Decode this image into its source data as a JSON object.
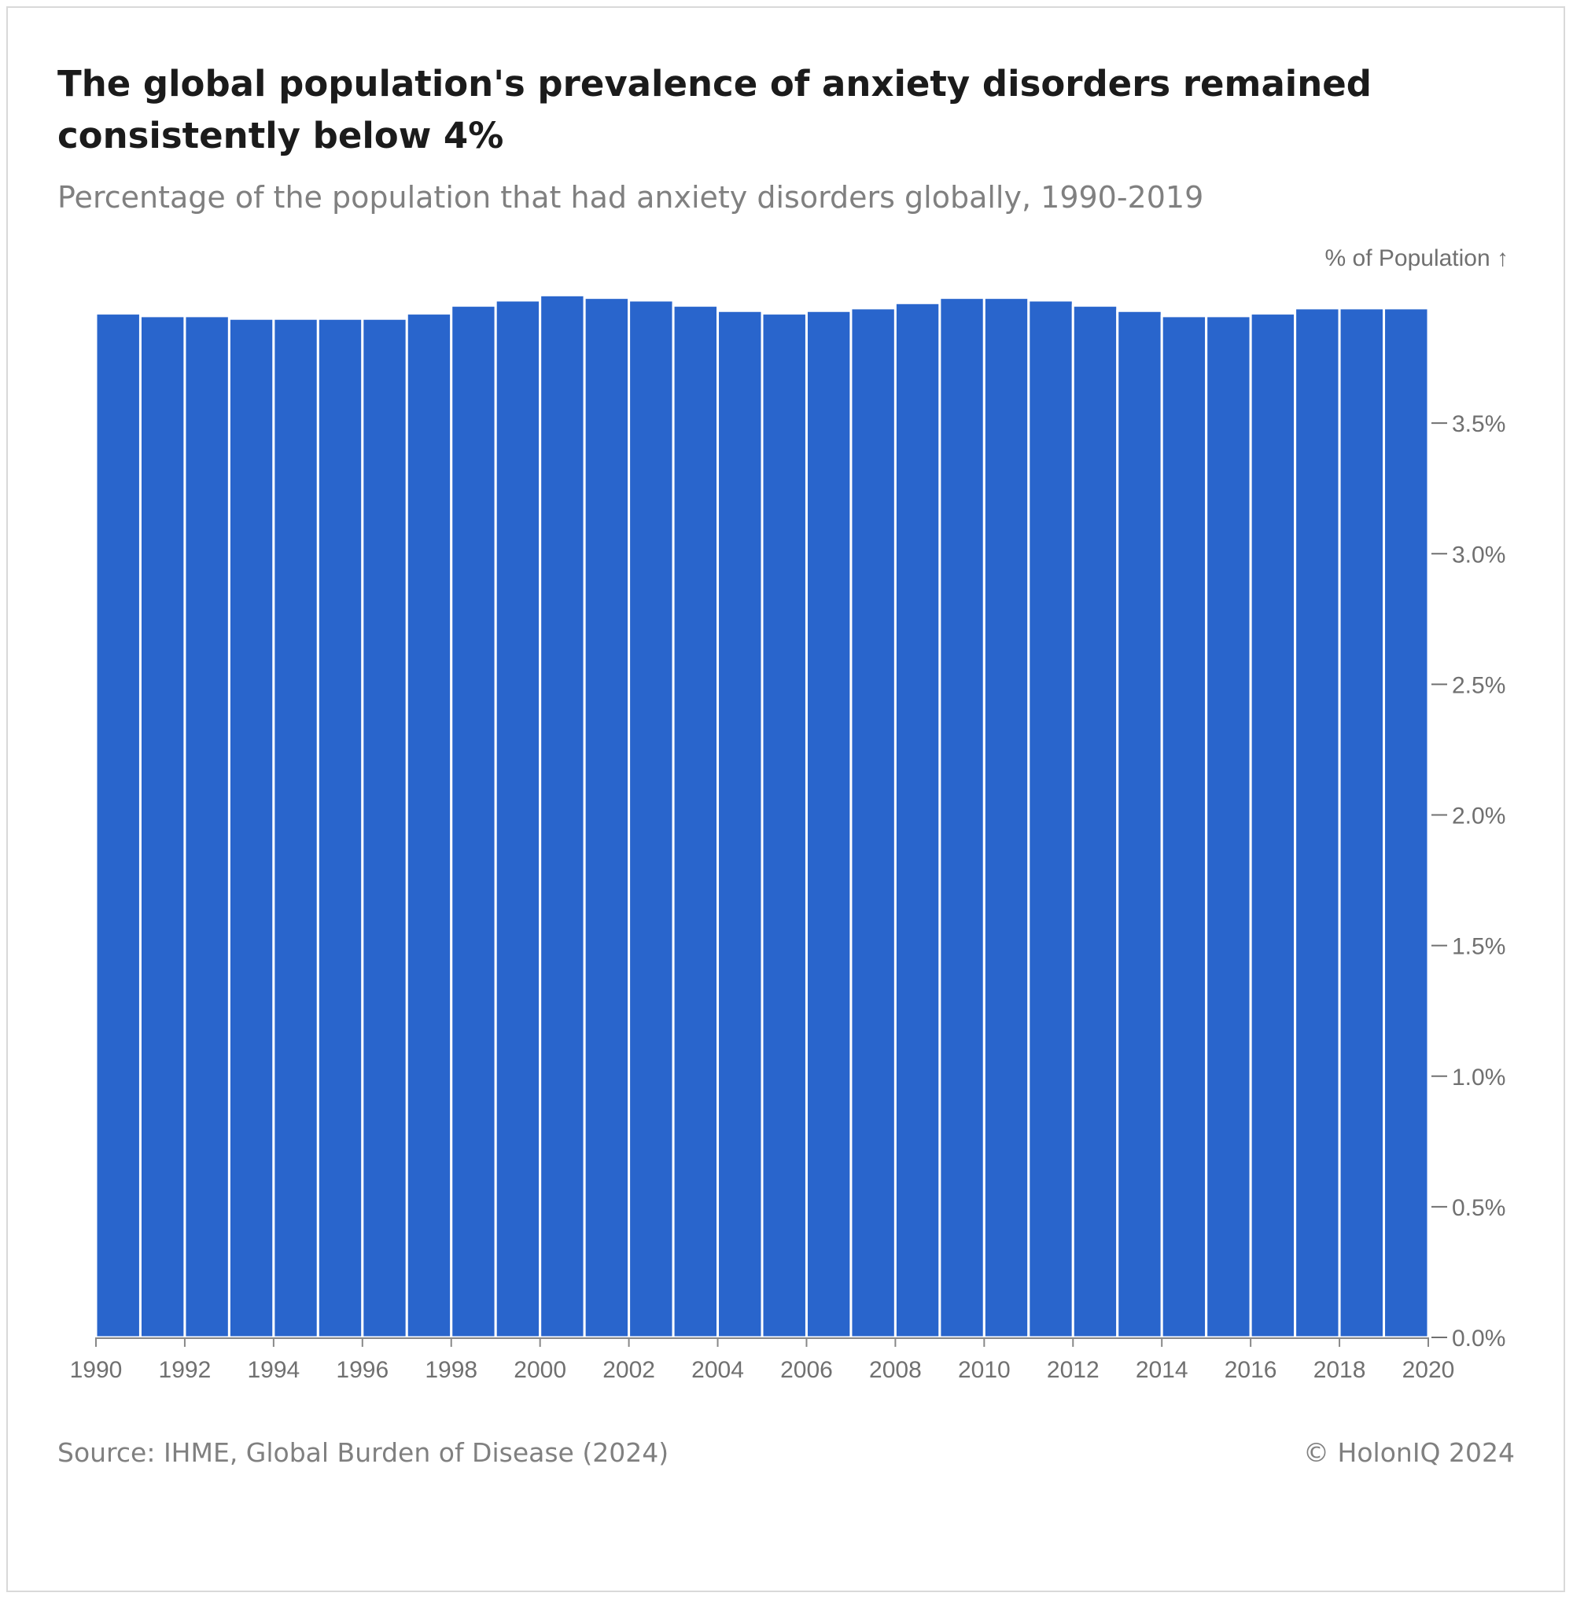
{
  "header": {
    "title": "The global population's prevalence of anxiety disorders remained consistently below 4%",
    "subtitle": "Percentage of the population that had anxiety disorders globally, 1990-2019"
  },
  "footer": {
    "source": "Source: IHME, Global Burden of Disease (2024)",
    "credit": "© HolonIQ 2024"
  },
  "chart_data": {
    "type": "bar",
    "title": "The global population's prevalence of anxiety disorders remained consistently below 4%",
    "subtitle": "Percentage of the population that had anxiety disorders globally, 1990-2019",
    "ylabel": "% of Population ↑",
    "xlabel": "",
    "bar_color": "#2965cc",
    "x": [
      1990,
      1991,
      1992,
      1993,
      1994,
      1995,
      1996,
      1997,
      1998,
      1999,
      2000,
      2001,
      2002,
      2003,
      2004,
      2005,
      2006,
      2007,
      2008,
      2009,
      2010,
      2011,
      2012,
      2013,
      2014,
      2015,
      2016,
      2017,
      2018,
      2019
    ],
    "values": [
      3.92,
      3.91,
      3.91,
      3.9,
      3.9,
      3.9,
      3.9,
      3.92,
      3.95,
      3.97,
      3.99,
      3.98,
      3.97,
      3.95,
      3.93,
      3.92,
      3.93,
      3.94,
      3.96,
      3.98,
      3.98,
      3.97,
      3.95,
      3.93,
      3.91,
      3.91,
      3.92,
      3.94,
      3.94,
      3.94
    ],
    "xlim": [
      1990,
      2020
    ],
    "ylim": [
      0,
      4.0
    ],
    "x_ticks": [
      1990,
      1992,
      1994,
      1996,
      1998,
      2000,
      2002,
      2004,
      2006,
      2008,
      2010,
      2012,
      2014,
      2016,
      2018,
      2020
    ],
    "y_ticks": [
      0.0,
      0.5,
      1.0,
      1.5,
      2.0,
      2.5,
      3.0,
      3.5
    ],
    "y_tick_labels": [
      "0.0%",
      "0.5%",
      "1.0%",
      "1.5%",
      "2.0%",
      "2.5%",
      "3.0%",
      "3.5%"
    ],
    "y_axis_position": "right",
    "grid": false,
    "legend": "none"
  }
}
